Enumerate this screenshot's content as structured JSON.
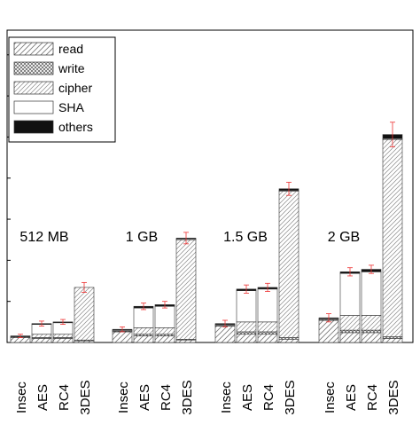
{
  "chart_data": {
    "type": "bar",
    "stacked": true,
    "title": "",
    "xlabel": "",
    "ylabel": "",
    "ylim": [
      0,
      380
    ],
    "grid": false,
    "legend_placement": "top-left",
    "categories": [
      "Insec",
      "AES",
      "RC4",
      "3DES",
      "Insec",
      "AES",
      "RC4",
      "3DES",
      "Insec",
      "AES",
      "RC4",
      "3DES",
      "Insec",
      "AES",
      "RC4",
      "3DES"
    ],
    "groups": [
      {
        "label": "512 MB",
        "bars": [
          "Insec",
          "AES",
          "RC4",
          "3DES"
        ]
      },
      {
        "label": "1 GB",
        "bars": [
          "Insec",
          "AES",
          "RC4",
          "3DES"
        ]
      },
      {
        "label": "1.5 GB",
        "bars": [
          "Insec",
          "AES",
          "RC4",
          "3DES"
        ]
      },
      {
        "label": "2 GB",
        "bars": [
          "Insec",
          "AES",
          "RC4",
          "3DES"
        ]
      }
    ],
    "series": [
      {
        "name": "read",
        "values": [
          6,
          5,
          5,
          2,
          13,
          8,
          8,
          3,
          20,
          10,
          10,
          4,
          27,
          12,
          12,
          5
        ]
      },
      {
        "name": "write",
        "values": [
          1,
          1,
          1,
          1,
          1,
          2,
          2,
          1,
          1,
          3,
          3,
          2,
          1,
          3,
          3,
          2
        ]
      },
      {
        "name": "cipher",
        "values": [
          0,
          4,
          4,
          64,
          0,
          8,
          8,
          121,
          0,
          12,
          12,
          178,
          0,
          18,
          18,
          240
        ]
      },
      {
        "name": "SHA",
        "values": [
          0,
          12,
          14,
          0,
          1,
          24,
          26,
          1,
          1,
          38,
          40,
          1,
          1,
          51,
          53,
          1
        ]
      },
      {
        "name": "others",
        "values": [
          1,
          1,
          1,
          0,
          1,
          2,
          2,
          1,
          1,
          2,
          2,
          2,
          1,
          2,
          3,
          5
        ]
      }
    ],
    "error_bars": [
      2,
      3,
      3,
      6,
      3,
      4,
      4,
      7,
      4,
      5,
      5,
      8,
      5,
      5,
      5,
      15
    ],
    "legend": [
      "read",
      "write",
      "cipher",
      "SHA",
      "others"
    ]
  }
}
